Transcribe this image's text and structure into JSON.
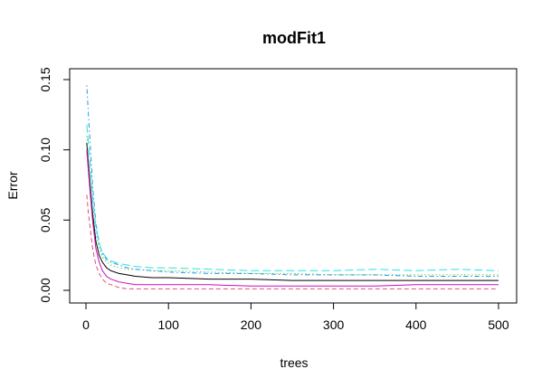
{
  "chart_data": {
    "type": "line",
    "title": "modFit1",
    "xlabel": "trees",
    "ylabel": "Error",
    "xlim": [
      0,
      500
    ],
    "ylim": [
      0,
      0.15
    ],
    "x_ticks": [
      0,
      100,
      200,
      300,
      400,
      500
    ],
    "x_tick_labels": [
      "0",
      "100",
      "200",
      "300",
      "400",
      "500"
    ],
    "y_ticks": [
      0.0,
      0.05,
      0.1,
      0.15
    ],
    "y_tick_labels": [
      "0.00",
      "0.05",
      "0.10",
      "0.15"
    ],
    "grid": false,
    "legend": "none",
    "series": [
      {
        "color": "#000000",
        "dash": "solid",
        "x": [
          1,
          3,
          5,
          8,
          12,
          16,
          20,
          25,
          30,
          40,
          50,
          60,
          80,
          100,
          150,
          200,
          250,
          300,
          350,
          400,
          450,
          500
        ],
        "y": [
          0.105,
          0.09,
          0.075,
          0.055,
          0.035,
          0.025,
          0.02,
          0.016,
          0.014,
          0.012,
          0.011,
          0.01,
          0.009,
          0.009,
          0.008,
          0.008,
          0.007,
          0.007,
          0.007,
          0.007,
          0.007,
          0.007
        ]
      },
      {
        "color": "#df536b",
        "dash": "dashed",
        "x": [
          1,
          3,
          5,
          8,
          12,
          16,
          20,
          25,
          30,
          40,
          50,
          60,
          80,
          100,
          150,
          200,
          250,
          300,
          350,
          400,
          450,
          500
        ],
        "y": [
          0.068,
          0.055,
          0.045,
          0.03,
          0.018,
          0.012,
          0.008,
          0.005,
          0.004,
          0.002,
          0.001,
          0.001,
          0.001,
          0.001,
          0.001,
          0.001,
          0.001,
          0.001,
          0.001,
          0.001,
          0.001,
          0.001
        ]
      },
      {
        "color": "#61d04f",
        "dash": "dotted",
        "x": [
          1,
          3,
          5,
          8,
          12,
          16,
          20,
          25,
          30,
          40,
          50,
          60,
          80,
          100,
          150,
          200,
          250,
          300,
          350,
          400,
          450,
          500
        ],
        "y": [
          0.11,
          0.095,
          0.08,
          0.06,
          0.04,
          0.03,
          0.024,
          0.02,
          0.018,
          0.016,
          0.015,
          0.015,
          0.014,
          0.014,
          0.013,
          0.012,
          0.012,
          0.011,
          0.011,
          0.011,
          0.011,
          0.011
        ]
      },
      {
        "color": "#2297e6",
        "dash": "dotdash",
        "x": [
          1,
          3,
          5,
          8,
          12,
          16,
          20,
          25,
          30,
          40,
          50,
          60,
          80,
          100,
          150,
          200,
          250,
          300,
          350,
          400,
          450,
          500
        ],
        "y": [
          0.146,
          0.125,
          0.105,
          0.075,
          0.048,
          0.034,
          0.026,
          0.022,
          0.02,
          0.018,
          0.016,
          0.015,
          0.014,
          0.013,
          0.012,
          0.012,
          0.011,
          0.011,
          0.011,
          0.01,
          0.01,
          0.01
        ]
      },
      {
        "color": "#28e2e5",
        "dash": "longdash",
        "x": [
          1,
          3,
          5,
          8,
          12,
          16,
          20,
          25,
          30,
          40,
          50,
          60,
          80,
          100,
          150,
          200,
          250,
          300,
          350,
          400,
          450,
          500
        ],
        "y": [
          0.118,
          0.105,
          0.09,
          0.068,
          0.045,
          0.033,
          0.027,
          0.023,
          0.021,
          0.019,
          0.018,
          0.017,
          0.016,
          0.016,
          0.015,
          0.014,
          0.014,
          0.014,
          0.015,
          0.014,
          0.015,
          0.014
        ]
      },
      {
        "color": "#cd0bbc",
        "dash": "solid",
        "x": [
          1,
          3,
          5,
          8,
          12,
          16,
          20,
          25,
          30,
          40,
          50,
          60,
          80,
          100,
          150,
          200,
          250,
          300,
          350,
          400,
          450,
          500
        ],
        "y": [
          0.1,
          0.085,
          0.07,
          0.05,
          0.03,
          0.02,
          0.014,
          0.01,
          0.008,
          0.006,
          0.005,
          0.004,
          0.004,
          0.004,
          0.004,
          0.003,
          0.003,
          0.003,
          0.003,
          0.004,
          0.004,
          0.004
        ]
      }
    ]
  }
}
